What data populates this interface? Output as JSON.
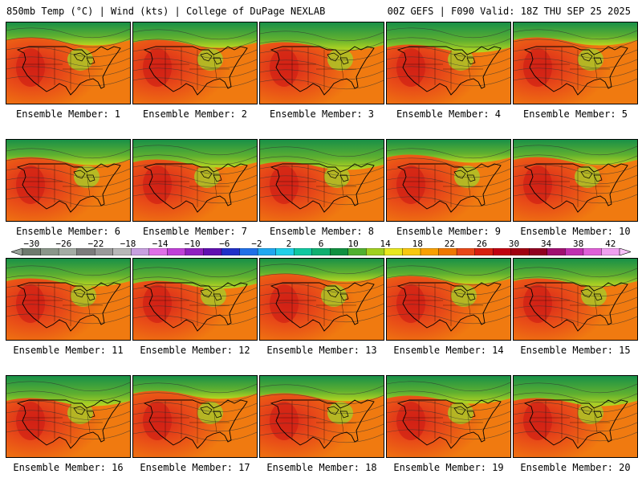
{
  "header": {
    "left": "850mb Temp (°C) | Wind (kts) | College of DuPage NEXLAB",
    "right": "00Z GEFS | F090 Valid: 18Z THU SEP 25 2025"
  },
  "panels": [
    {
      "label": "Ensemble Member: 1"
    },
    {
      "label": "Ensemble Member: 2"
    },
    {
      "label": "Ensemble Member: 3"
    },
    {
      "label": "Ensemble Member: 4"
    },
    {
      "label": "Ensemble Member: 5"
    },
    {
      "label": "Ensemble Member: 6"
    },
    {
      "label": "Ensemble Member: 7"
    },
    {
      "label": "Ensemble Member: 8"
    },
    {
      "label": "Ensemble Member: 9"
    },
    {
      "label": "Ensemble Member: 10"
    },
    {
      "label": "Ensemble Member: 11"
    },
    {
      "label": "Ensemble Member: 12"
    },
    {
      "label": "Ensemble Member: 13"
    },
    {
      "label": "Ensemble Member: 14"
    },
    {
      "label": "Ensemble Member: 15"
    },
    {
      "label": "Ensemble Member: 16"
    },
    {
      "label": "Ensemble Member: 17"
    },
    {
      "label": "Ensemble Member: 18"
    },
    {
      "label": "Ensemble Member: 19"
    },
    {
      "label": "Ensemble Member: 20"
    }
  ],
  "colorbar": {
    "ticks": [
      "−30",
      "−26",
      "−22",
      "−18",
      "−14",
      "−10",
      "−6",
      "−2",
      "2",
      "6",
      "10",
      "14",
      "18",
      "22",
      "26",
      "30",
      "34",
      "38",
      "42"
    ],
    "colors": [
      "#6e7a6e",
      "#8a968a",
      "#a4aca4",
      "#7c7c7c",
      "#9a9a9a",
      "#b8b8b8",
      "#c8a0e0",
      "#e070e8",
      "#c040d8",
      "#9020c0",
      "#6010b0",
      "#2030c8",
      "#2070e8",
      "#20a8f0",
      "#20d0e8",
      "#10c8a0",
      "#10b070",
      "#109040",
      "#50b030",
      "#a0d020",
      "#e8e820",
      "#f8c810",
      "#f8a000",
      "#f07800",
      "#e84818",
      "#d82010",
      "#c00010",
      "#a00010",
      "#900020",
      "#a01070",
      "#c030b0",
      "#e060d8",
      "#f0a0f0"
    ]
  }
}
